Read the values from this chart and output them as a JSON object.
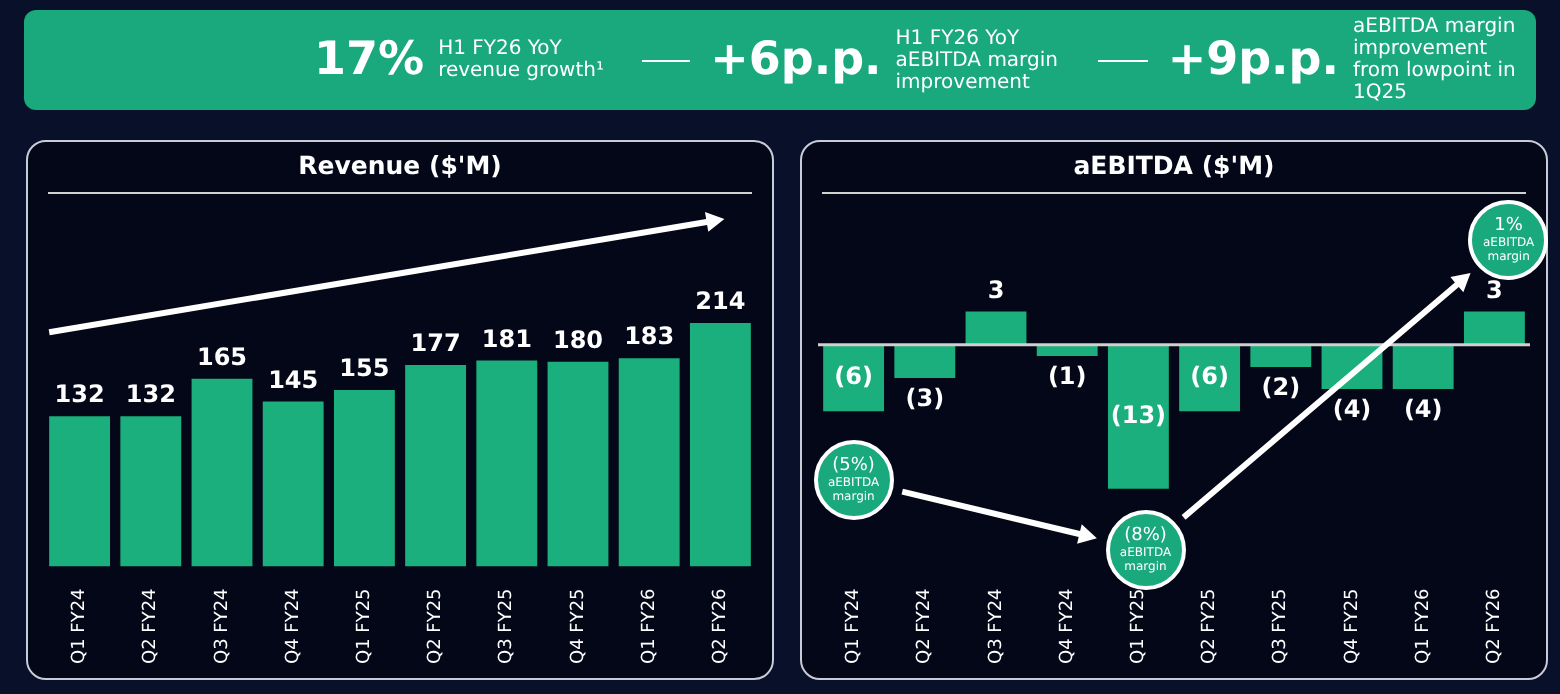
{
  "chart_data": [
    {
      "type": "other",
      "annotations": [
        "17%",
        "H1 FY26 YoY revenue growth¹",
        "+6p.p.",
        "H1 FY26 YoY aEBITDA margin improvement",
        "+9p.p.",
        "aEBITDA margin improvement from lowpoint in 1Q25"
      ]
    },
    {
      "type": "bar",
      "title": "Revenue ($'M)",
      "categories": [
        "Q1 FY24",
        "Q2 FY24",
        "Q3 FY24",
        "Q4 FY24",
        "Q1 FY25",
        "Q2 FY25",
        "Q3 FY25",
        "Q4 FY25",
        "Q1 FY26",
        "Q2 FY26"
      ],
      "values": [
        132,
        132,
        165,
        145,
        155,
        177,
        181,
        180,
        183,
        214
      ],
      "color": "#1aaf7d",
      "data_labels": true
    },
    {
      "type": "bar",
      "title": "aEBITDA ($'M)",
      "categories": [
        "Q1 FY24",
        "Q2 FY24",
        "Q3 FY24",
        "Q4 FY24",
        "Q1 FY25",
        "Q2 FY25",
        "Q3 FY25",
        "Q4 FY25",
        "Q1 FY26",
        "Q2 FY26"
      ],
      "values": [
        -6,
        -3,
        3,
        -1,
        -13,
        -6,
        -2,
        -4,
        -4,
        3
      ],
      "color": "#1aaf7d",
      "value_labels": [
        "(6)",
        "(3)",
        "3",
        "(1)",
        "(13)",
        "(6)",
        "(2)",
        "(4)",
        "(4)",
        "3"
      ],
      "annotations": [
        "(5%) aEBITDA margin",
        "(8%) aEBITDA margin",
        "1% aEBITDA margin"
      ]
    }
  ]
}
